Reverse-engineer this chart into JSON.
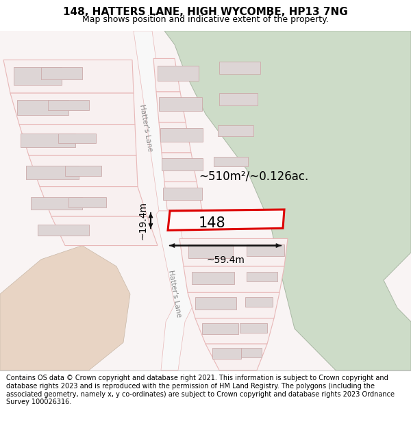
{
  "title": "148, HATTERS LANE, HIGH WYCOMBE, HP13 7NG",
  "subtitle": "Map shows position and indicative extent of the property.",
  "footer": "Contains OS data © Crown copyright and database right 2021. This information is subject to Crown copyright and database rights 2023 and is reproduced with the permission of HM Land Registry. The polygons (including the associated geometry, namely x, y co-ordinates) are subject to Crown copyright and database rights 2023 Ordnance Survey 100026316.",
  "bg_color": "#ffffff",
  "map_bg": "#f9f4f4",
  "road_color": "#f8f8f8",
  "plot_outline_color": "#dd0000",
  "building_fill": "#ddd5d5",
  "building_outline": "#ccaaaa",
  "green_area_color": "#cddcc8",
  "road_line_color": "#e8b8b8",
  "tan_color": "#e8d4c4",
  "dimension_color": "#111111",
  "area_text": "~510m²/~0.126ac.",
  "label_148": "148",
  "dim_width": "~59.4m",
  "dim_height": "~19.4m",
  "title_fontsize": 11,
  "subtitle_fontsize": 9,
  "footer_fontsize": 7.0
}
